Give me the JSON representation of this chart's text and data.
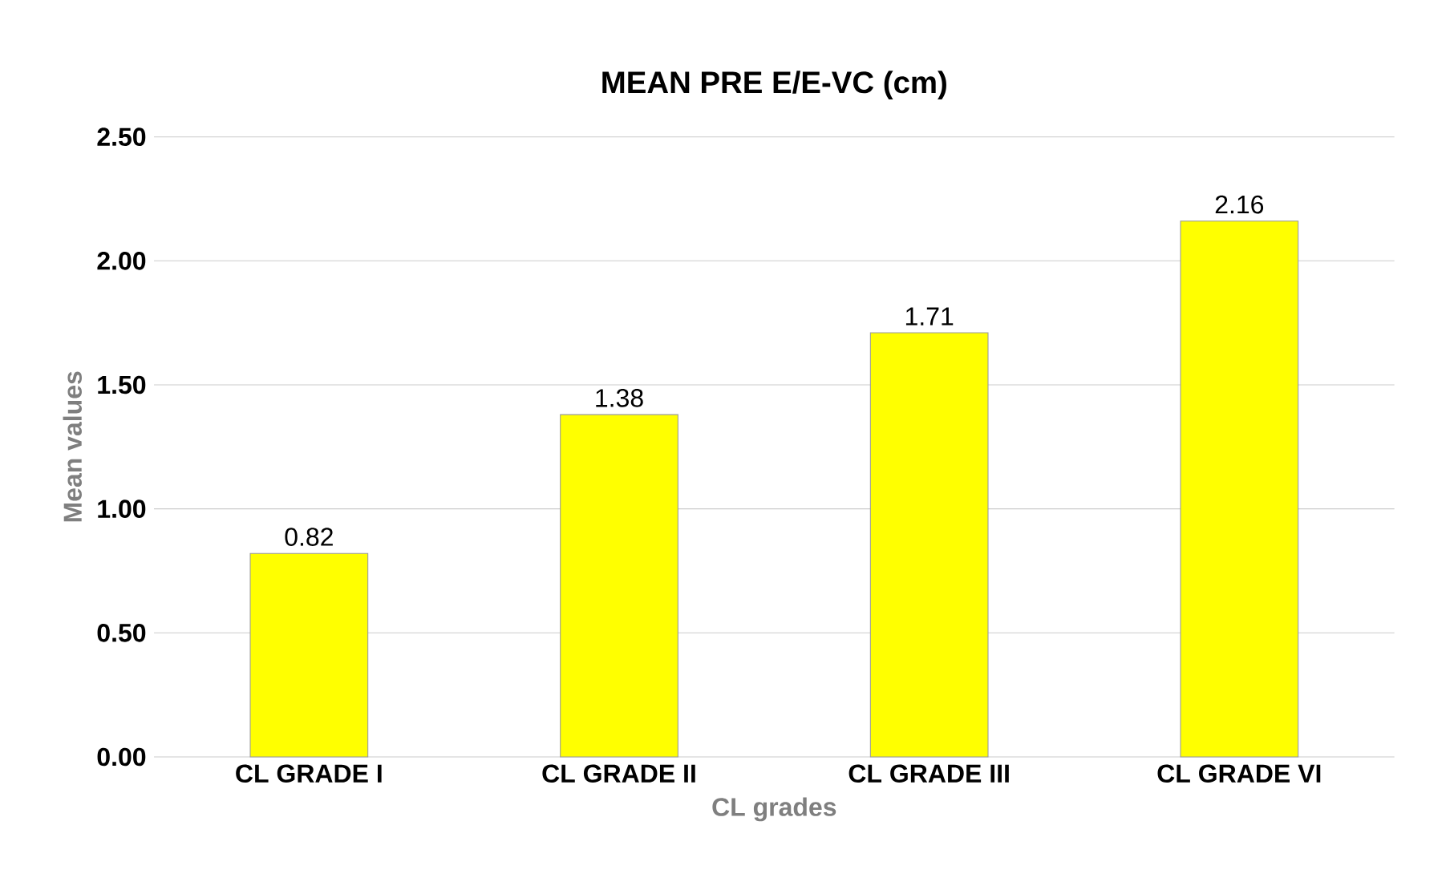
{
  "chart_data": {
    "type": "bar",
    "title": "MEAN PRE E/E-VC (cm)",
    "xlabel": "CL grades",
    "ylabel": "Mean values",
    "categories": [
      "CL GRADE I",
      "CL GRADE II",
      "CL GRADE III",
      "CL GRADE VI"
    ],
    "values": [
      0.82,
      1.38,
      1.71,
      2.16
    ],
    "color": "#ffff00",
    "ylim": [
      0,
      2.5
    ],
    "yticks": [
      {
        "value": 0,
        "label": "0.00"
      },
      {
        "value": 0.5,
        "label": "0.50"
      },
      {
        "value": 1,
        "label": "1.00"
      },
      {
        "value": 1.5,
        "label": "1.50"
      },
      {
        "value": 2,
        "label": "2.00"
      },
      {
        "value": 2.5,
        "label": "2.50"
      }
    ],
    "grid": "y",
    "data_labels": true
  }
}
